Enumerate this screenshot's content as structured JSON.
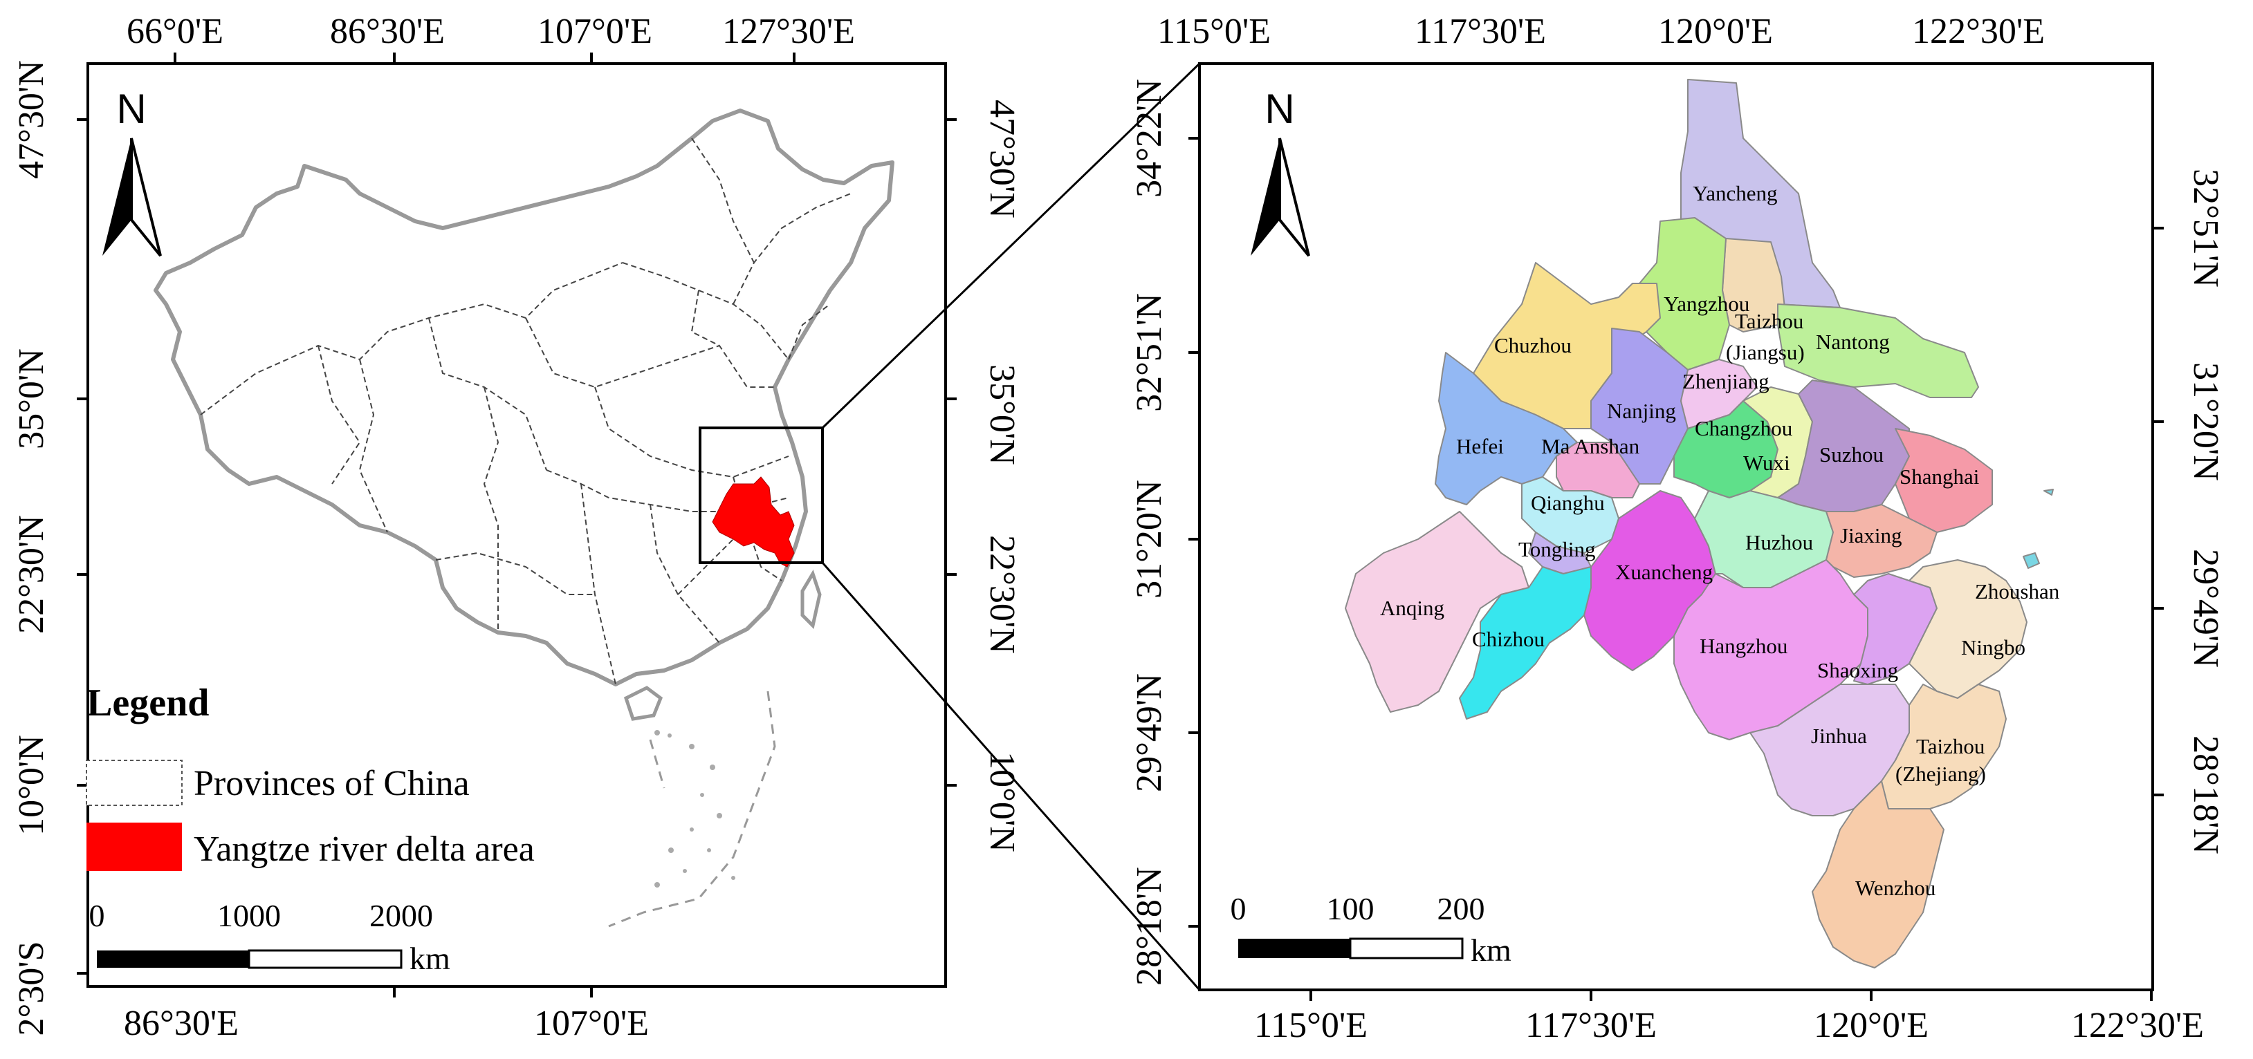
{
  "left_map": {
    "top_ticks": [
      "66°0'E",
      "86°30'E",
      "107°0'E",
      "127°30'E"
    ],
    "bottom_ticks": [
      "86°30'E",
      "107°0'E"
    ],
    "left_ticks": [
      "47°30'N",
      "35°0'N",
      "22°30'N",
      "10°0'N",
      "2°30'S"
    ],
    "right_ticks": [
      "47°30'N",
      "35°0'N",
      "22°30'N",
      "10°0'N"
    ],
    "north": "N",
    "legend": {
      "title": "Legend",
      "items": [
        {
          "label": "Provinces of China",
          "swatch": "outline"
        },
        {
          "label": "Yangtze river delta area",
          "swatch": "#ff0000"
        }
      ]
    },
    "scale": {
      "labels": [
        "0",
        "1000",
        "2000"
      ],
      "unit": "km"
    }
  },
  "right_map": {
    "top_ticks": [
      "115°0'E",
      "117°30'E",
      "120°0'E",
      "122°30'E"
    ],
    "bottom_ticks": [
      "115°0'E",
      "117°30'E",
      "120°0'E",
      "122°30'E"
    ],
    "left_ticks": [
      "34°22'N",
      "32°51'N",
      "31°20'N",
      "29°49'N",
      "28°18'N"
    ],
    "right_ticks": [
      "32°51'N",
      "31°20'N",
      "29°49'N",
      "28°18'N"
    ],
    "north": "N",
    "scale": {
      "labels": [
        "0",
        "100",
        "200"
      ],
      "unit": "km"
    },
    "cities": {
      "yancheng": "Yancheng",
      "yangzhou": "Yangzhou",
      "taizhou_js_1": "Taizhou",
      "taizhou_js_2": "(Jiangsu)",
      "nantong": "Nantong",
      "chuzhou": "Chuzhou",
      "zhenjiang": "Zhenjiang",
      "nanjing": "Nanjing",
      "changzhou": "Changzhou",
      "hefei": "Hefei",
      "maanshan": "Ma Anshan",
      "wuxi": "Wuxi",
      "suzhou": "Suzhou",
      "shanghai": "Shanghai",
      "qianghu": "Qianghu",
      "tongling": "Tongling",
      "huzhou": "Huzhou",
      "jiaxing": "Jiaxing",
      "xuancheng": "Xuancheng",
      "zhoushan": "Zhoushan",
      "anqing": "Anqing",
      "chizhou": "Chizhou",
      "hangzhou": "Hangzhou",
      "ningbo": "Ningbo",
      "shaoxing": "Shaoxing",
      "jinhua": "Jinhua",
      "taizhou_zj_1": "Taizhou",
      "taizhou_zj_2": "(Zhejiang)",
      "wenzhou": "Wenzhou"
    }
  },
  "colors": {
    "delta_red": "#ff0000",
    "yancheng": "#c9c3ec",
    "yangzhou": "#b9ef86",
    "taizhou_js": "#f3dcb6",
    "nantong": "#bdf09a",
    "chuzhou": "#f8e08e",
    "zhenjiang": "#f2c6ee",
    "nanjing": "#a9a0ef",
    "changzhou": "#5fe08a",
    "hefei": "#93b8f3",
    "maanshan": "#f3a9d3",
    "wuxi": "#ecf6b4",
    "suzhou": "#b697d0",
    "shanghai": "#f59aa8",
    "qianghu": "#b9eef7",
    "tongling": "#c4b2f0",
    "huzhou": "#b5f3cd",
    "jiaxing": "#f4b5a9",
    "xuancheng": "#e35be6",
    "zhoushan": "#7ad6e3",
    "anqing": "#f7d1e6",
    "chizhou": "#37e6ee",
    "hangzhou": "#ef9ef0",
    "ningbo": "#f6e6cd",
    "shaoxing": "#dca3f1",
    "jinhua": "#e4c7f0",
    "taizhou_zj": "#f7dcbb",
    "wenzhou": "#f7ccaa"
  }
}
